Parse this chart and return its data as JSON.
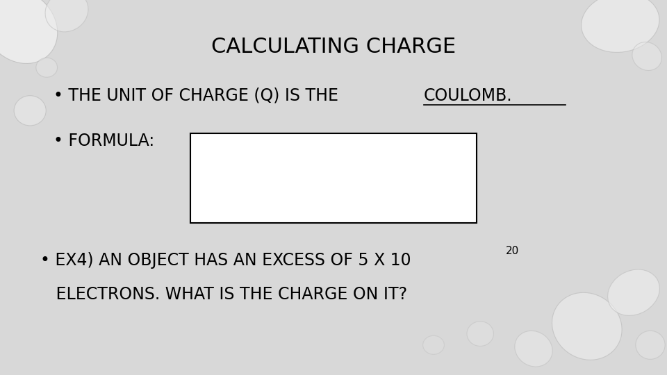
{
  "title": "CALCULATING CHARGE",
  "bullet1_part1": "• THE UNIT OF CHARGE (Q) IS THE ",
  "bullet1_part2": "COULOMB.",
  "bullet2_prefix": "• FORMULA:",
  "bullet3_line1": "• EX4) AN OBJECT HAS AN EXCESS OF 5 X 10",
  "bullet3_sup": "20",
  "bullet3_line2": "   ELECTRONS. WHAT IS THE CHARGE ON IT?",
  "bg_color": "#d8d8d8",
  "text_color": "#000000",
  "title_fontsize": 22,
  "body_fontsize": 17,
  "box_color": "#ffffff",
  "box_edge_color": "#000000"
}
